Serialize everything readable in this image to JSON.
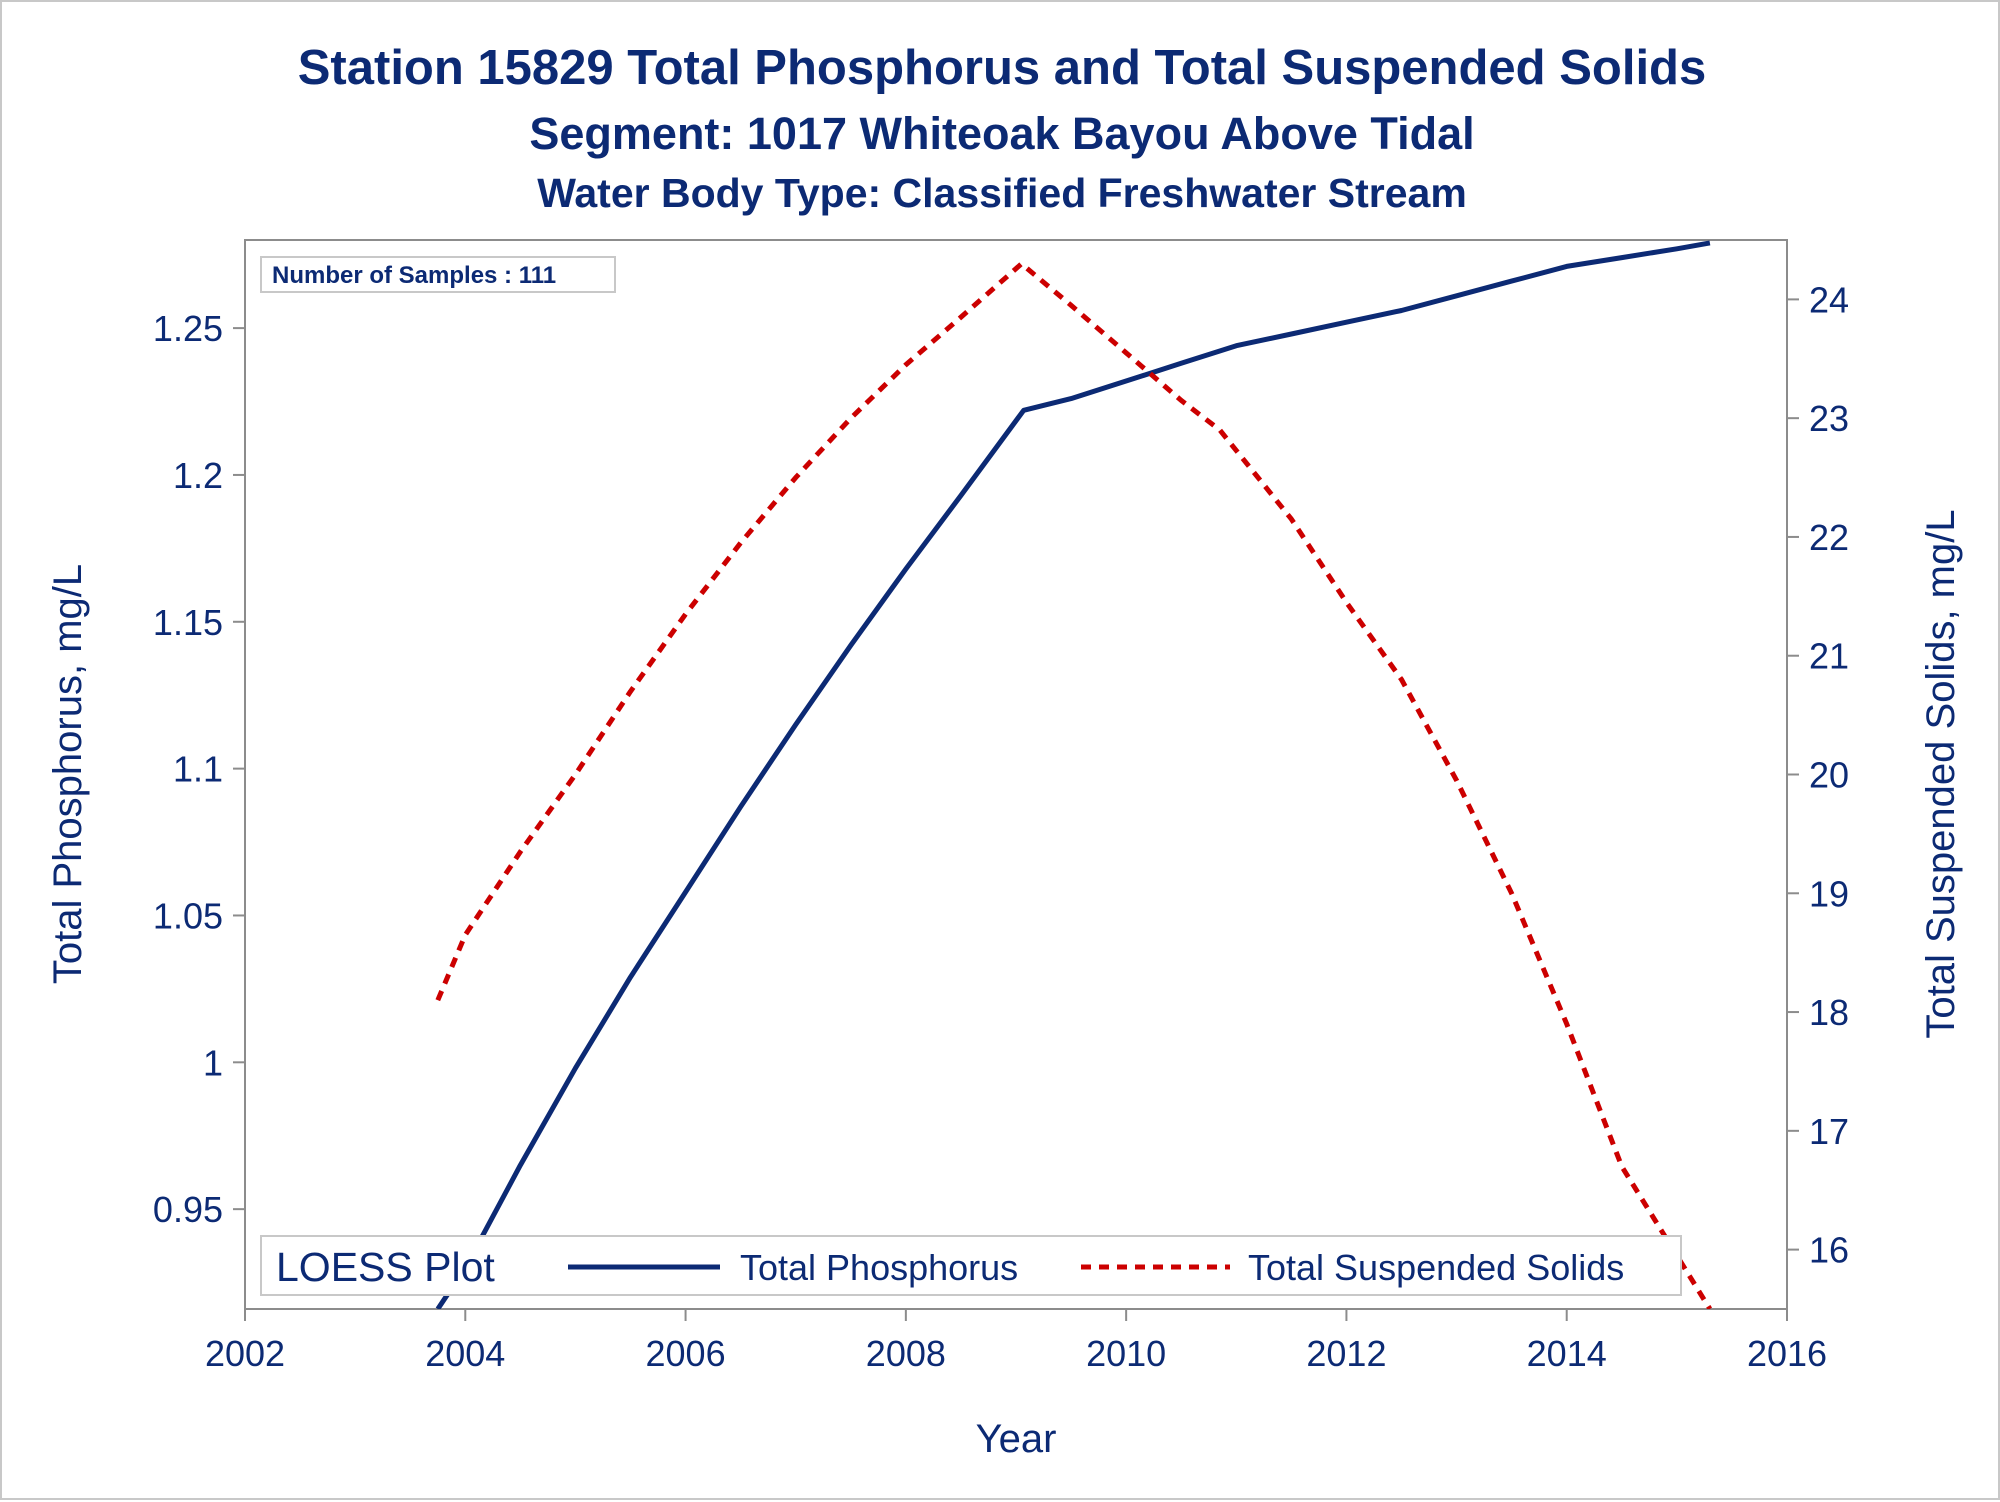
{
  "titles": {
    "title": "Station 15829  Total Phosphorus and Total Suspended Solids",
    "subtitle": "Segment: 1017  Whiteoak Bayou Above Tidal",
    "subtitle2": "Water Body Type: Classified Freshwater Stream"
  },
  "inset_label": "Number of Samples : 111",
  "legend": {
    "title": "LOESS Plot",
    "items": [
      "Total Phosphorus",
      "Total Suspended Solids"
    ]
  },
  "colors": {
    "text": "#0c2a74",
    "phosphorus": "#0c2a74",
    "suspended_solids": "#cc0000",
    "axis": "#8c8c8c"
  },
  "chart_data": {
    "type": "line",
    "xlabel": "Year",
    "ylabel": "Total Phosphorus, mg/L",
    "y2label": "Total Suspended Solids, mg/L",
    "xlim": [
      2002,
      2016
    ],
    "ylim": [
      0.916,
      1.28
    ],
    "y2lim": [
      15.5,
      24.5
    ],
    "x_ticks": [
      2002,
      2004,
      2006,
      2008,
      2010,
      2012,
      2014,
      2016
    ],
    "y_ticks": [
      0.95,
      1,
      1.05,
      1.1,
      1.15,
      1.2,
      1.25
    ],
    "y_tick_labels": [
      "0.95",
      "1",
      "1.05",
      "1.1",
      "1.15",
      "1.2",
      "1.25"
    ],
    "y2_ticks": [
      16,
      17,
      18,
      19,
      20,
      21,
      22,
      23,
      24
    ],
    "grid": false,
    "legend_position": "bottom-inside",
    "series": [
      {
        "name": "Total Phosphorus",
        "axis": "left",
        "style": "solid",
        "x": [
          2003.75,
          2004.0,
          2004.5,
          2005.0,
          2005.5,
          2006.0,
          2006.5,
          2007.0,
          2007.5,
          2008.0,
          2008.5,
          2009.07,
          2009.5,
          2010.0,
          2010.5,
          2011.0,
          2011.5,
          2012.0,
          2012.5,
          2013.0,
          2013.5,
          2014.0,
          2014.5,
          2015.0,
          2015.3
        ],
        "y": [
          0.916,
          0.93,
          0.965,
          0.998,
          1.029,
          1.058,
          1.087,
          1.115,
          1.142,
          1.168,
          1.193,
          1.222,
          1.226,
          1.232,
          1.238,
          1.244,
          1.248,
          1.252,
          1.256,
          1.261,
          1.266,
          1.271,
          1.274,
          1.277,
          1.279
        ]
      },
      {
        "name": "Total Suspended Solids",
        "axis": "right",
        "style": "dashed",
        "x": [
          2003.75,
          2004.0,
          2004.5,
          2005.0,
          2005.5,
          2006.0,
          2006.5,
          2007.0,
          2007.5,
          2008.0,
          2008.5,
          2009.05,
          2009.5,
          2010.0,
          2010.5,
          2010.85,
          2011.5,
          2012.0,
          2012.5,
          2013.0,
          2013.5,
          2014.0,
          2014.5,
          2015.0,
          2015.3
        ],
        "y": [
          18.1,
          18.65,
          19.35,
          20.0,
          20.7,
          21.35,
          21.95,
          22.5,
          23.0,
          23.45,
          23.85,
          24.3,
          23.95,
          23.55,
          23.15,
          22.9,
          22.15,
          21.45,
          20.8,
          19.95,
          19.0,
          17.9,
          16.7,
          15.95,
          15.5
        ]
      }
    ]
  }
}
